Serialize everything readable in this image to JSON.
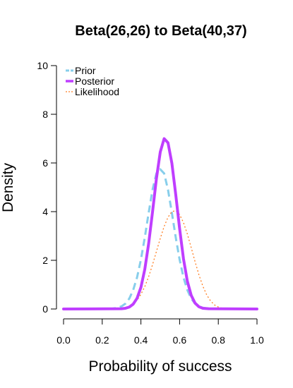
{
  "chart_data": {
    "type": "line",
    "title": "Beta(26,26) to Beta(40,37)",
    "xlabel": "Probability of success",
    "ylabel": "Density",
    "xlim": [
      0,
      1
    ],
    "ylim": [
      0,
      10
    ],
    "x_ticks": [
      "0.0",
      "0.2",
      "0.4",
      "0.6",
      "0.8",
      "1.0"
    ],
    "y_ticks": [
      "0",
      "2",
      "4",
      "6",
      "8",
      "10"
    ],
    "grid": false,
    "legend_position": "top-left",
    "series": [
      {
        "name": "Prior",
        "color": "#87CEEB",
        "style": "dashed",
        "width": 3,
        "x": [
          0.0,
          0.25,
          0.28,
          0.3,
          0.32,
          0.34,
          0.36,
          0.38,
          0.4,
          0.42,
          0.44,
          0.46,
          0.48,
          0.5,
          0.52,
          0.54,
          0.56,
          0.58,
          0.6,
          0.62,
          0.64,
          0.66,
          0.68,
          0.7,
          0.72,
          0.75,
          1.0
        ],
        "values": [
          0,
          0.01,
          0.05,
          0.11,
          0.22,
          0.43,
          0.78,
          1.3,
          2.03,
          2.94,
          3.95,
          4.9,
          5.57,
          5.74,
          5.57,
          4.9,
          3.95,
          2.94,
          2.03,
          1.3,
          0.78,
          0.43,
          0.22,
          0.11,
          0.05,
          0.01,
          0
        ]
      },
      {
        "name": "Posterior",
        "color": "#BF3EFF",
        "style": "solid",
        "width": 4,
        "x": [
          0.0,
          0.3,
          0.32,
          0.34,
          0.36,
          0.38,
          0.4,
          0.42,
          0.44,
          0.46,
          0.48,
          0.5,
          0.52,
          0.54,
          0.56,
          0.58,
          0.6,
          0.62,
          0.64,
          0.66,
          0.68,
          0.7,
          0.72,
          0.75,
          1.0
        ],
        "values": [
          0,
          0.01,
          0.03,
          0.08,
          0.2,
          0.44,
          0.89,
          1.63,
          2.69,
          3.99,
          5.35,
          6.45,
          7.0,
          6.83,
          5.99,
          4.7,
          3.3,
          2.06,
          1.14,
          0.56,
          0.24,
          0.09,
          0.03,
          0.01,
          0
        ]
      },
      {
        "name": "Likelihood",
        "color": "#FF7F24",
        "style": "dotted",
        "width": 1.3,
        "x": [
          0.0,
          0.3,
          0.32,
          0.34,
          0.36,
          0.38,
          0.4,
          0.42,
          0.44,
          0.46,
          0.48,
          0.5,
          0.52,
          0.54,
          0.56,
          0.58,
          0.6,
          0.62,
          0.64,
          0.66,
          0.68,
          0.7,
          0.72,
          0.74,
          0.76,
          0.78,
          0.8,
          0.82,
          0.85,
          1.0
        ],
        "values": [
          0,
          0.02,
          0.05,
          0.1,
          0.2,
          0.36,
          0.6,
          0.92,
          1.33,
          1.82,
          2.36,
          2.9,
          3.39,
          3.77,
          4.0,
          4.04,
          3.88,
          3.55,
          3.08,
          2.52,
          1.94,
          1.4,
          0.94,
          0.58,
          0.33,
          0.17,
          0.08,
          0.03,
          0.01,
          0
        ]
      }
    ]
  }
}
